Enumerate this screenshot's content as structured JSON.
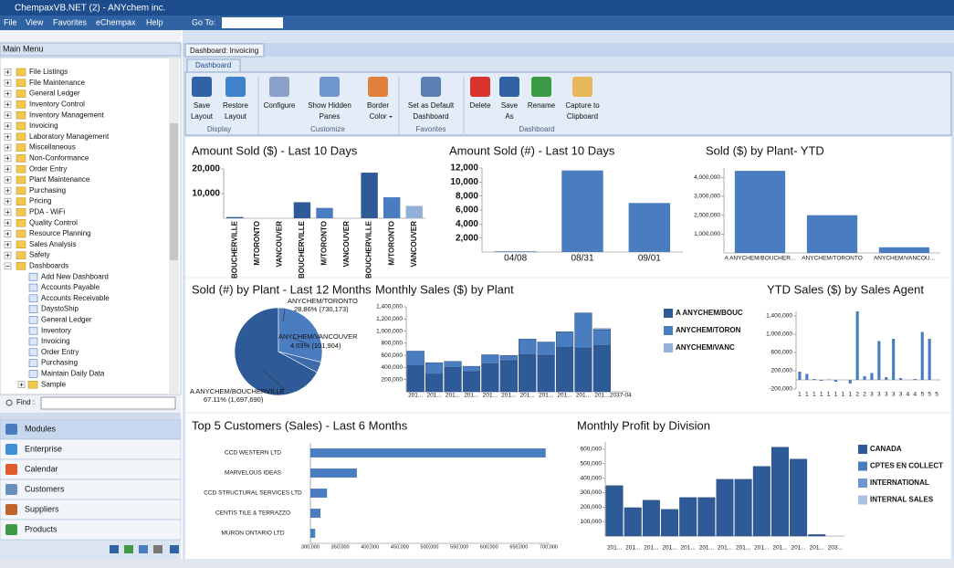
{
  "window": {
    "title": "ChempaxVB.NET (2) - ANYchem inc."
  },
  "menu": {
    "items": [
      "File",
      "View",
      "Favorites",
      "eChempax",
      "Help"
    ],
    "goto": "Go To:"
  },
  "main_menu": {
    "title": "Main Menu",
    "items": [
      "File Listings",
      "File Maintenance",
      "General Ledger",
      "Inventory Control",
      "Inventory Management",
      "Invoicing",
      "Laboratory Management",
      "Miscellaneous",
      "Non-Conformance",
      "Order Entry",
      "Plant Maintenance",
      "Purchasing",
      "Pricing",
      "PDA - WiFi",
      "Quality Control",
      "Resource Planning",
      "Sales Analysis",
      "Safety",
      "Dashboards"
    ],
    "dashboard_items": [
      "Add New Dashboard",
      "Accounts Payable",
      "Accounts Receivable",
      "DaystoShip",
      "General Ledger",
      "Inventory",
      "Invoicing",
      "Order Entry",
      "Purchasing",
      "Maintain Daily Data",
      "Sample"
    ],
    "find": "Find :"
  },
  "nav": [
    "Modules",
    "Enterprise",
    "Calendar",
    "Customers",
    "Suppliers",
    "Products"
  ],
  "tab": "Dashboard: Invoicing",
  "ribbon": {
    "tab": "Dashboard",
    "groups": [
      {
        "name": "Display",
        "buttons": [
          {
            "lines": [
              "Save",
              "Layout"
            ]
          },
          {
            "lines": [
              "Restore",
              "Layout"
            ]
          }
        ]
      },
      {
        "name": "Customize",
        "buttons": [
          {
            "lines": [
              "Configure"
            ]
          },
          {
            "lines": [
              "Show Hidden",
              "Panes"
            ]
          },
          {
            "lines": [
              "Border",
              "Color"
            ]
          }
        ]
      },
      {
        "name": "Favorites",
        "buttons": [
          {
            "lines": [
              "Set as Default",
              "Dashboard"
            ]
          }
        ]
      },
      {
        "name": "Dashboard",
        "buttons": [
          {
            "lines": [
              "Delete"
            ]
          },
          {
            "lines": [
              "Save",
              "As"
            ]
          },
          {
            "lines": [
              "Rename"
            ]
          },
          {
            "lines": [
              "Capture to",
              "Clipboard"
            ]
          }
        ]
      }
    ]
  },
  "chart_data": [
    {
      "type": "bar",
      "title": "Amount Sold ($) - Last 10 Days",
      "categories": [
        "BOUCHERVILLE",
        "M/TORONTO",
        "VANCOUVER",
        "BOUCHERVILLE",
        "M/TORONTO",
        "VANCOUVER",
        "BOUCHERVILLE",
        "M/TORONTO",
        "VANCOUVER"
      ],
      "values": [
        500,
        null,
        null,
        6500,
        4200,
        null,
        18500,
        8500,
        5000
      ],
      "colors": [
        "#2e5b98",
        null,
        null,
        "#2e5b98",
        "#4a7cc0",
        null,
        "#2e5b98",
        "#4a7cc0",
        "#93b0d9"
      ],
      "ylim": [
        0,
        20000
      ],
      "yticks": [
        {
          "value": 10000,
          "label": "10,000"
        },
        {
          "value": 20000,
          "label": "20,000"
        }
      ]
    },
    {
      "type": "bar",
      "title": "Amount Sold (#) - Last 10 Days",
      "categories": [
        "04/08",
        "08/31",
        "09/01"
      ],
      "values": [
        100,
        11650,
        7000
      ],
      "color": "#4a7cc0",
      "ylim": [
        0,
        12000
      ],
      "yticks": [
        {
          "value": 2000,
          "label": "2,000"
        },
        {
          "value": 4000,
          "label": "4,000"
        },
        {
          "value": 6000,
          "label": "6,000"
        },
        {
          "value": 8000,
          "label": "8,000"
        },
        {
          "value": 10000,
          "label": "10,000"
        },
        {
          "value": 12000,
          "label": "12,000"
        }
      ]
    },
    {
      "type": "bar",
      "title": "Sold ($) by Plant- YTD",
      "categories": [
        "A ANYCHEM/BOUCHER...",
        "ANYCHEM/TORONTO",
        "ANYCHEM/VANCOU..."
      ],
      "values": [
        4350000,
        2000000,
        300000
      ],
      "color": "#4a7cc0",
      "ylim": [
        0,
        4500000
      ],
      "yticks": [
        {
          "value": 1000000,
          "label": "1,000,000"
        },
        {
          "value": 2000000,
          "label": "2,000,000"
        },
        {
          "value": 3000000,
          "label": "3,000,000"
        },
        {
          "value": 4000000,
          "label": "4,000,000"
        }
      ]
    },
    {
      "type": "pie",
      "title": "Sold (#) by Plant - Last 12 Months",
      "categories": [
        "A ANYCHEM/BOUCHERVILLE",
        "ANYCHEM/TORONTO",
        "ANYCHEM/VANCOUVER"
      ],
      "values": [
        1697690,
        730173,
        101904
      ],
      "value_labels": [
        "67.11% (1,697,690)",
        "28.86% (730,173)",
        "4.03% (101,904)"
      ],
      "colors": [
        "#2e5b98",
        "#4a7cc0",
        "#3d6cad"
      ]
    },
    {
      "type": "bar",
      "title": "Monthly Sales ($) by Plant",
      "stacked": true,
      "categories": [
        "201...",
        "201...",
        "201...",
        "201...",
        "201...",
        "201...",
        "201...",
        "201...",
        "201...",
        "201...",
        "201...",
        "2037-04"
      ],
      "series": [
        {
          "name": "A ANYCHEM/BOUC",
          "color": "#2e5b98",
          "values": [
            430000,
            290000,
            400000,
            330000,
            460000,
            510000,
            610000,
            600000,
            730000,
            720000,
            760000,
            0
          ]
        },
        {
          "name": "ANYCHEM/TORON",
          "color": "#4a7cc0",
          "values": [
            240000,
            190000,
            100000,
            90000,
            150000,
            90000,
            260000,
            220000,
            260000,
            580000,
            260000,
            null
          ]
        },
        {
          "name": "ANYCHEM/VANC",
          "color": "#93b0d9",
          "values": [
            null,
            null,
            null,
            null,
            null,
            null,
            null,
            null,
            null,
            null,
            20000,
            null
          ]
        }
      ],
      "ylim": [
        0,
        1400000
      ],
      "yticks": [
        {
          "value": 200000,
          "label": "200,000"
        },
        {
          "value": 400000,
          "label": "400,000"
        },
        {
          "value": 600000,
          "label": "600,000"
        },
        {
          "value": 800000,
          "label": "800,000"
        },
        {
          "value": 1000000,
          "label": "1,000,000"
        },
        {
          "value": 1200000,
          "label": "1,200,000"
        },
        {
          "value": 1400000,
          "label": "1,400,000"
        }
      ]
    },
    {
      "type": "bar",
      "title": "YTD Sales ($) by Sales Agent",
      "categories": [
        "1",
        "1",
        "1",
        "1",
        "1",
        "1",
        "1",
        "1",
        "2",
        "2",
        "3",
        "3",
        "3",
        "3",
        "3",
        "4",
        "4",
        "5",
        "5",
        "5"
      ],
      "values": [
        180000,
        130000,
        20000,
        -20000,
        10000,
        -40000,
        0,
        -80000,
        1500000,
        80000,
        150000,
        850000,
        60000,
        900000,
        40000,
        0,
        20000,
        1050000,
        900000,
        0
      ],
      "color": "#4a7cc0",
      "ylim": [
        -200000,
        1500000
      ],
      "yticks": [
        {
          "value": -200000,
          "label": "-200,000"
        },
        {
          "value": 200000,
          "label": "200,000"
        },
        {
          "value": 600000,
          "label": "600,000"
        },
        {
          "value": 1000000,
          "label": "1,000,000"
        },
        {
          "value": 1400000,
          "label": "1,400,000"
        }
      ]
    },
    {
      "type": "bar",
      "horizontal": true,
      "title": "Top 5 Customers (Sales) - Last 6 Months",
      "categories": [
        "CCD WESTERN LTD",
        "MARVELOUS IDEAS",
        "CCD STRUCTURAL SERVICES LTD",
        "CENTIS TILE & TERRAZZO",
        "MURON ONTARIO LTD"
      ],
      "values": [
        695000,
        378000,
        328000,
        317000,
        308000
      ],
      "color": "#4a7cc0",
      "xlim": [
        300000,
        700000
      ],
      "xticks": [
        {
          "value": 300000,
          "label": "300,000"
        },
        {
          "value": 350000,
          "label": "350,000"
        },
        {
          "value": 400000,
          "label": "400,000"
        },
        {
          "value": 450000,
          "label": "450,000"
        },
        {
          "value": 500000,
          "label": "500,000"
        },
        {
          "value": 550000,
          "label": "550,000"
        },
        {
          "value": 600000,
          "label": "600,000"
        },
        {
          "value": 650000,
          "label": "650,000"
        },
        {
          "value": 700000,
          "label": "700,000"
        }
      ]
    },
    {
      "type": "bar",
      "title": "Monthly Profit by Division",
      "stacked": true,
      "categories": [
        "201...",
        "201...",
        "201...",
        "201...",
        "201...",
        "201...",
        "201...",
        "201...",
        "201...",
        "201...",
        "201...",
        "201...",
        "203..."
      ],
      "series": [
        {
          "name": "CANADA",
          "color": "#2e5b98",
          "values": [
            348000,
            196000,
            247000,
            184000,
            266000,
            266000,
            392000,
            392000,
            481000,
            614000,
            532000,
            10000,
            null
          ]
        },
        {
          "name": "CPTES EN COLLECT",
          "color": "#4a7cc0",
          "values": [
            null,
            null,
            null,
            null,
            null,
            null,
            null,
            null,
            null,
            null,
            null,
            null,
            null
          ]
        },
        {
          "name": "INTERNATIONAL",
          "color": "#6f96cf",
          "values": [
            null,
            null,
            null,
            null,
            null,
            null,
            null,
            null,
            null,
            null,
            null,
            null,
            null
          ]
        },
        {
          "name": "INTERNAL SALES",
          "color": "#a9c1e3",
          "values": [
            null,
            null,
            null,
            null,
            null,
            null,
            null,
            null,
            null,
            null,
            null,
            null,
            null
          ]
        }
      ],
      "ylim": [
        0,
        650000
      ],
      "yticks": [
        {
          "value": 100000,
          "label": "100,000"
        },
        {
          "value": 200000,
          "label": "200,000"
        },
        {
          "value": 300000,
          "label": "300,000"
        },
        {
          "value": 400000,
          "label": "400,000"
        },
        {
          "value": 500000,
          "label": "500,000"
        },
        {
          "value": 600000,
          "label": "600,000"
        }
      ]
    }
  ]
}
